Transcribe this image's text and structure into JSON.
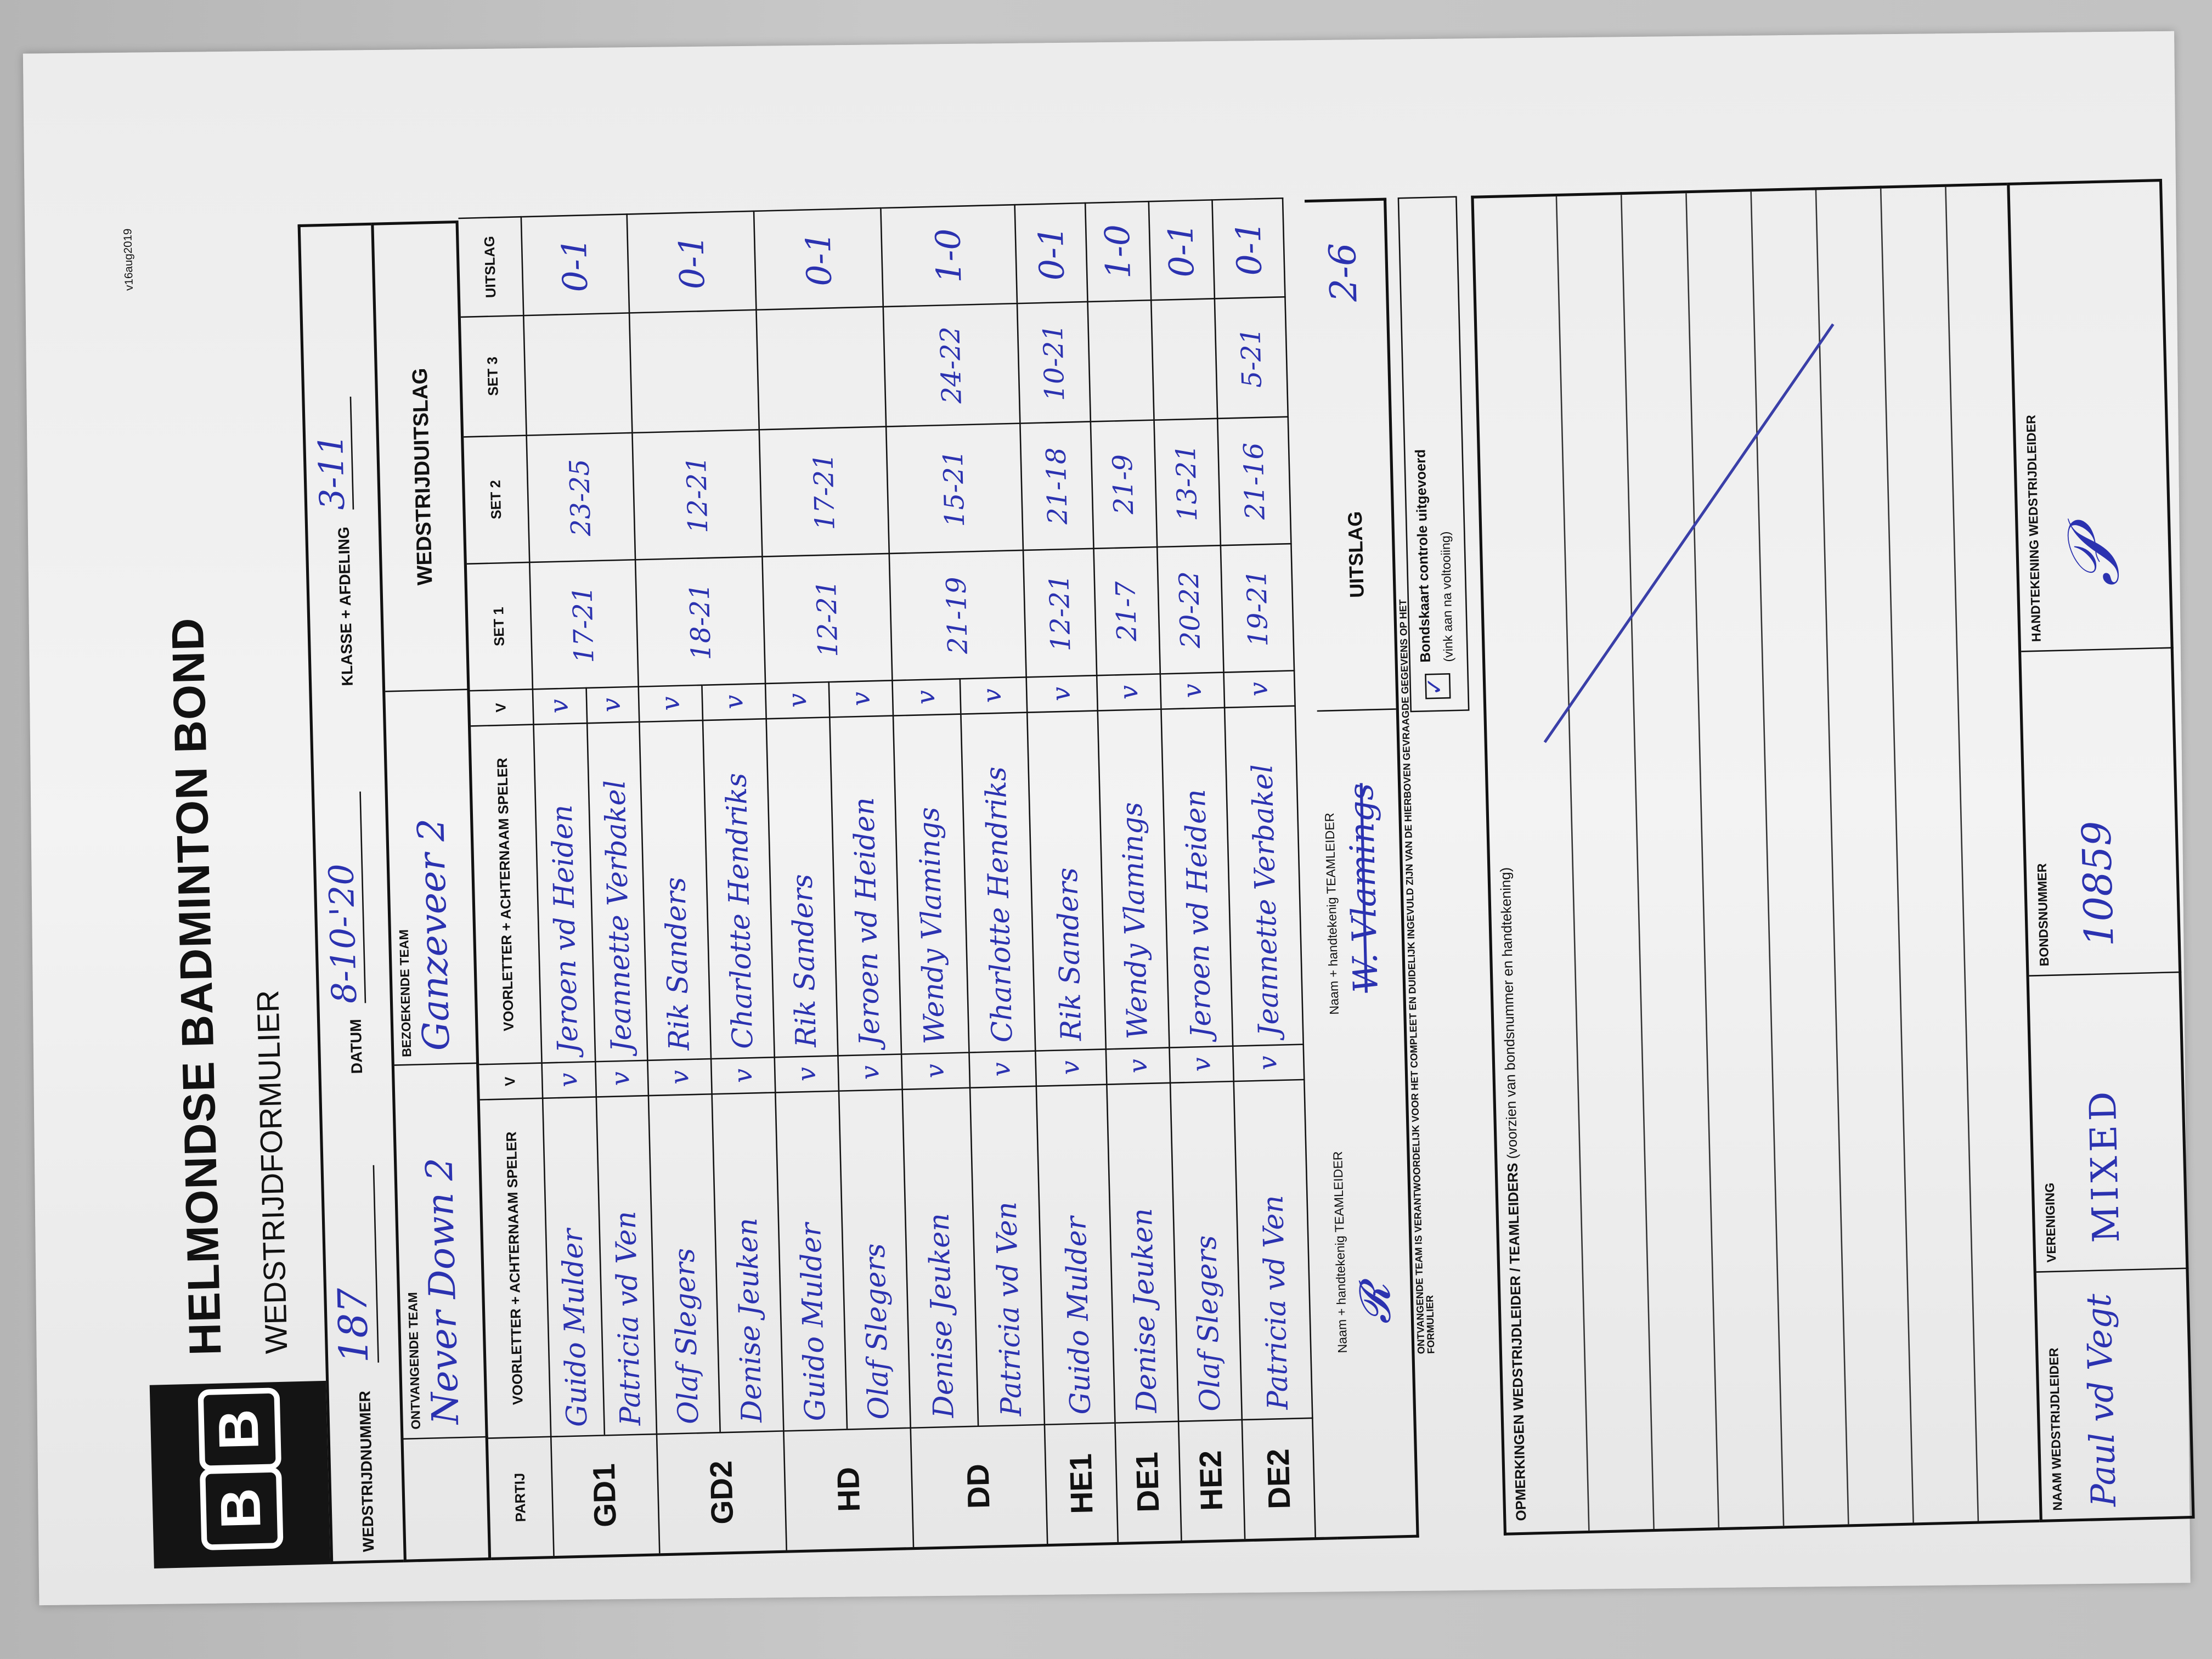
{
  "header": {
    "org": "HELMONDSE BADMINTON BOND",
    "form_title": "WEDSTRIJDFORMULIER",
    "version": "v16aug2019",
    "logo_letters": [
      "B",
      "B"
    ]
  },
  "meta": {
    "match_number_label": "WEDSTRIJDNUMMER",
    "match_number": "187",
    "date_label": "DATUM",
    "date": "8-10-'20",
    "class_label": "KLASSE + AFDELING",
    "class": "3-11",
    "home_team_label": "ONTVANGENDE TEAM",
    "home_team": "Never Down 2",
    "away_team_label": "BEZOEKENDE TEAM",
    "away_team": "Ganzeveer 2",
    "result_label": "WEDSTRIJDUITSLAG"
  },
  "table": {
    "columns": [
      "PARTIJ",
      "VOORLETTER + ACHTERNAAM SPELER",
      "V",
      "VOORLETTER + ACHTERNAAM SPELER",
      "V",
      "SET 1",
      "SET 2",
      "SET 3",
      "UITSLAG"
    ],
    "rows": [
      {
        "partij": "GD1",
        "home": [
          "Guido Mulder",
          "Patricia vd Ven"
        ],
        "away": [
          "Jeroen vd Heiden",
          "Jeannette Verbakel"
        ],
        "set1": "17-21",
        "set2": "23-25",
        "set3": "",
        "result": "0-1"
      },
      {
        "partij": "GD2",
        "home": [
          "Olaf Slegers",
          "Denise Jeuken"
        ],
        "away": [
          "Rik Sanders",
          "Charlotte Hendriks"
        ],
        "set1": "18-21",
        "set2": "12-21",
        "set3": "",
        "result": "0-1"
      },
      {
        "partij": "HD",
        "home": [
          "Guido Mulder",
          "Olaf Slegers"
        ],
        "away": [
          "Rik Sanders",
          "Jeroen vd Heiden"
        ],
        "set1": "12-21",
        "set2": "17-21",
        "set3": "",
        "result": "0-1"
      },
      {
        "partij": "DD",
        "home": [
          "Denise Jeuken",
          "Patricia vd Ven"
        ],
        "away": [
          "Wendy Vlamings",
          "Charlotte Hendriks"
        ],
        "set1": "21-19",
        "set2": "15-21",
        "set3": "24-22",
        "result": "1-0"
      },
      {
        "partij": "HE1",
        "home": [
          "Guido Mulder"
        ],
        "away": [
          "Rik Sanders"
        ],
        "set1": "12-21",
        "set2": "21-18",
        "set3": "10-21",
        "result": "0-1"
      },
      {
        "partij": "DE1",
        "home": [
          "Denise Jeuken"
        ],
        "away": [
          "Wendy Vlamings"
        ],
        "set1": "21-7",
        "set2": "21-9",
        "set3": "",
        "result": "1-0"
      },
      {
        "partij": "HE2",
        "home": [
          "Olaf Slegers"
        ],
        "away": [
          "Jeroen vd Heiden"
        ],
        "set1": "20-22",
        "set2": "13-21",
        "set3": "",
        "result": "0-1"
      },
      {
        "partij": "DE2",
        "home": [
          "Patricia vd Ven"
        ],
        "away": [
          "Jeannette Verbakel"
        ],
        "set1": "19-21",
        "set2": "21-16",
        "set3": "5-21",
        "result": "0-1"
      }
    ],
    "check_mark": "v"
  },
  "signatures": {
    "teamleader_label": "Naam + handtekenig TEAMLEIDER",
    "away_teamleader": "W. Vlamings",
    "total_label": "UITSLAG",
    "total": "2-6"
  },
  "footer": {
    "responsibility": "ONTVANGENDE TEAM IS VERANTWOORDELIJK VOOR HET COMPLEET EN DUIDELIJK INGEVULD ZIJN VAN DE HIERBOVEN GEVRAAGDE GEGEVENS OP HET FORMULIER",
    "card_check_label": "Bondskaart controle uitgevoerd",
    "card_check_hint": "(vink aan na voltooiing)",
    "card_check_checked": true,
    "remarks_label": "OPMERKINGEN WEDSTRIJDLEIDER / TEAMLEIDERS",
    "remarks_hint": "(voorzien van bondsnummer en handtekening)"
  },
  "referee": {
    "name_label": "NAAM WEDSTRIJDLEIDER",
    "name": "Paul vd Vegt",
    "club_label": "VERENIGING",
    "club": "MIXED",
    "number_label": "BONDSNUMMER",
    "number": "10859",
    "signature_label": "HANDTEKENING WEDSTRIJDLEIDER"
  },
  "colors": {
    "ink": "#2b32b0",
    "paper": "#f0f0f0",
    "background": "#bdbdbd"
  }
}
